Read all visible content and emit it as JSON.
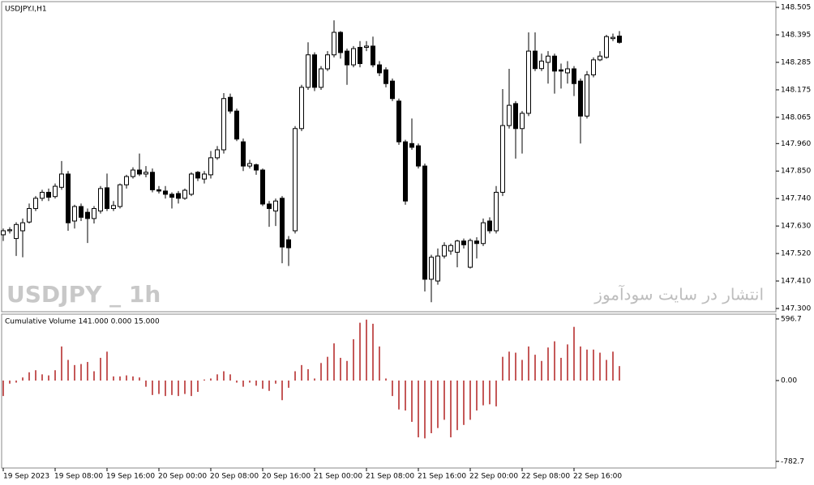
{
  "chart_data": [
    {
      "type": "candlestick",
      "title": "USDJPY.I,H1",
      "watermark": "USDJPY _ 1h",
      "annotation": "انتشار در سایت سودآموز",
      "x": [
        0,
        1,
        2,
        3,
        4,
        5,
        6,
        7,
        8,
        9,
        10,
        11,
        12,
        13,
        14,
        15,
        16,
        17,
        18,
        19,
        20,
        21,
        22,
        23,
        24,
        25,
        26,
        27,
        28,
        29,
        30,
        31,
        32,
        33,
        34,
        35,
        36,
        37,
        38,
        39,
        40,
        41,
        42,
        43,
        44,
        45,
        46,
        47,
        48,
        49,
        50,
        51,
        52,
        53,
        54,
        55,
        56,
        57,
        58,
        59,
        60,
        61,
        62,
        63,
        64,
        65,
        66,
        67,
        68,
        69,
        70,
        71,
        72,
        73,
        74,
        75,
        76,
        77,
        78,
        79,
        80,
        81,
        82,
        83,
        84,
        85,
        86,
        87,
        88,
        89,
        90,
        91,
        92,
        93,
        94,
        95
      ],
      "open": [
        147.595,
        147.611,
        147.58,
        147.611,
        147.646,
        147.7,
        147.741,
        147.765,
        147.748,
        147.785,
        147.838,
        147.65,
        147.708,
        147.685,
        147.66,
        147.69,
        147.783,
        147.7,
        147.708,
        147.795,
        147.828,
        147.854,
        147.838,
        147.845,
        147.775,
        147.77,
        147.757,
        147.76,
        147.741,
        147.757,
        147.845,
        147.818,
        147.835,
        147.903,
        147.935,
        148.145,
        148.09,
        147.967,
        147.87,
        147.875,
        147.854,
        147.718,
        147.69,
        147.741,
        147.575,
        147.611,
        148.02,
        148.185,
        148.315,
        148.185,
        148.259,
        148.315,
        148.405,
        148.33,
        148.275,
        148.345,
        148.345,
        148.35,
        148.275,
        148.255,
        148.21,
        148.13,
        147.967,
        147.96,
        147.951,
        147.87,
        147.417,
        147.41,
        147.51,
        147.53,
        147.525,
        147.57,
        147.465,
        147.57,
        147.56,
        147.65,
        147.611,
        147.765,
        148.032,
        148.12,
        148.02,
        148.081,
        148.33,
        148.26,
        148.285,
        148.31,
        148.255,
        148.243,
        148.259,
        148.21,
        148.07,
        148.235,
        148.295,
        148.305,
        148.38,
        148.39
      ],
      "high": [
        147.62,
        147.625,
        147.645,
        147.66,
        147.72,
        147.75,
        147.775,
        147.78,
        147.8,
        147.89,
        147.85,
        147.715,
        147.72,
        147.7,
        147.71,
        147.79,
        147.84,
        147.73,
        147.8,
        147.835,
        147.865,
        147.92,
        147.87,
        147.86,
        147.79,
        147.79,
        147.765,
        147.77,
        147.78,
        147.845,
        147.85,
        147.85,
        147.93,
        147.95,
        148.162,
        148.16,
        148.1,
        147.98,
        147.895,
        147.88,
        147.86,
        147.73,
        147.74,
        147.75,
        147.59,
        148.03,
        148.195,
        148.365,
        148.325,
        148.27,
        148.33,
        148.453,
        148.41,
        148.34,
        148.35,
        148.37,
        148.37,
        148.388,
        148.29,
        148.265,
        148.22,
        148.14,
        147.975,
        148.06,
        147.96,
        147.88,
        147.515,
        147.54,
        147.565,
        147.56,
        147.575,
        147.58,
        147.58,
        147.585,
        147.66,
        147.665,
        147.79,
        148.178,
        148.259,
        148.13,
        148.09,
        148.405,
        148.405,
        148.32,
        148.33,
        148.32,
        148.28,
        148.29,
        148.27,
        148.22,
        148.25,
        148.305,
        148.33,
        148.395,
        148.4,
        148.41
      ],
      "low": [
        147.57,
        147.6,
        147.51,
        147.505,
        147.64,
        147.69,
        147.73,
        147.73,
        147.74,
        147.775,
        147.611,
        147.62,
        147.65,
        147.562,
        147.64,
        147.68,
        147.69,
        147.69,
        147.7,
        147.78,
        147.82,
        147.83,
        147.825,
        147.765,
        147.76,
        147.74,
        147.7,
        147.72,
        147.735,
        147.75,
        147.81,
        147.8,
        147.82,
        147.895,
        147.92,
        148.08,
        147.97,
        147.85,
        147.86,
        147.835,
        147.71,
        147.627,
        147.63,
        147.481,
        147.47,
        147.6,
        148.01,
        148.175,
        148.17,
        148.175,
        148.25,
        148.305,
        148.3,
        148.195,
        148.265,
        148.265,
        148.33,
        148.265,
        148.23,
        148.185,
        148.13,
        147.955,
        147.715,
        147.935,
        147.86,
        147.368,
        147.325,
        147.395,
        147.5,
        147.515,
        147.465,
        147.54,
        147.46,
        147.5,
        147.55,
        147.6,
        147.6,
        147.75,
        148.02,
        147.9,
        147.92,
        148.07,
        148.25,
        148.25,
        148.2,
        148.16,
        148.18,
        148.2,
        148.15,
        147.96,
        148.06,
        148.225,
        148.29,
        148.3,
        148.37,
        148.36
      ],
      "close": [
        147.611,
        147.615,
        147.636,
        147.643,
        147.7,
        147.741,
        147.765,
        147.745,
        147.789,
        147.838,
        147.643,
        147.708,
        147.665,
        147.66,
        147.7,
        147.78,
        147.7,
        147.712,
        147.795,
        147.828,
        147.854,
        147.838,
        147.845,
        147.775,
        147.77,
        147.757,
        147.745,
        147.741,
        147.773,
        147.838,
        147.822,
        147.838,
        147.903,
        147.935,
        148.14,
        148.09,
        147.978,
        147.87,
        147.88,
        147.854,
        147.718,
        147.7,
        147.73,
        147.546,
        147.543,
        148.02,
        148.185,
        148.315,
        148.185,
        148.259,
        148.315,
        148.405,
        148.324,
        148.275,
        148.34,
        148.28,
        148.35,
        148.275,
        148.243,
        148.2,
        148.14,
        147.967,
        147.73,
        147.945,
        147.87,
        147.417,
        147.505,
        147.51,
        147.552,
        147.552,
        147.57,
        147.555,
        147.572,
        147.56,
        147.643,
        147.611,
        147.765,
        148.032,
        148.113,
        148.02,
        148.081,
        148.33,
        148.26,
        148.29,
        148.31,
        148.25,
        148.25,
        148.259,
        148.2,
        148.07,
        148.235,
        148.295,
        148.31,
        148.388,
        148.385,
        148.365
      ],
      "up_color": "#ffffff",
      "down_color": "#000000",
      "xlim": [
        -0.25,
        119.125
      ],
      "ylim": [
        147.287,
        148.528
      ],
      "yticks": [
        148.505,
        148.395,
        148.285,
        148.175,
        148.065,
        {
          "value": 147.96,
          "label": "147.960"
        },
        {
          "value": 147.85,
          "label": "147.850"
        },
        {
          "value": 147.74,
          "label": "147.740"
        },
        {
          "value": 147.63,
          "label": "147.630"
        },
        {
          "value": 147.52,
          "label": "147.520"
        },
        {
          "value": 147.41,
          "label": "147.410"
        },
        {
          "value": 147.3,
          "label": "147.300"
        }
      ]
    },
    {
      "type": "bar",
      "title": "Cumulative Volume 141.000 0.000 15.000",
      "color": "#b22222",
      "x": [
        0,
        1,
        2,
        3,
        4,
        5,
        6,
        7,
        8,
        9,
        10,
        11,
        12,
        13,
        14,
        15,
        16,
        17,
        18,
        19,
        20,
        21,
        22,
        23,
        24,
        25,
        26,
        27,
        28,
        29,
        30,
        31,
        32,
        33,
        34,
        35,
        36,
        37,
        38,
        39,
        40,
        41,
        42,
        43,
        44,
        45,
        46,
        47,
        48,
        49,
        50,
        51,
        52,
        53,
        54,
        55,
        56,
        57,
        58,
        59,
        60,
        61,
        62,
        63,
        64,
        65,
        66,
        67,
        68,
        69,
        70,
        71,
        72,
        73,
        74,
        75,
        76,
        77,
        78,
        79,
        80,
        81,
        82,
        83,
        84,
        85,
        86,
        87,
        88,
        89,
        90,
        91,
        92,
        93,
        94,
        95
      ],
      "values": [
        -150,
        -30,
        -20,
        30,
        80,
        100,
        60,
        50,
        100,
        330,
        200,
        150,
        160,
        180,
        90,
        220,
        280,
        40,
        40,
        50,
        40,
        30,
        -60,
        -140,
        -130,
        -150,
        -140,
        -150,
        -130,
        -150,
        -110,
        10,
        20,
        60,
        90,
        60,
        -20,
        -60,
        -20,
        -50,
        -80,
        -100,
        -30,
        -190,
        -70,
        90,
        150,
        110,
        20,
        170,
        230,
        360,
        220,
        190,
        400,
        560,
        590,
        550,
        330,
        20,
        -150,
        -280,
        -290,
        -400,
        -550,
        -560,
        -510,
        -460,
        -380,
        -550,
        -480,
        -430,
        -380,
        -290,
        -240,
        -230,
        -250,
        230,
        280,
        270,
        200,
        330,
        250,
        190,
        320,
        380,
        220,
        350,
        520,
        330,
        300,
        300,
        270,
        200,
        280,
        140
      ],
      "xlim": [
        -0.25,
        119.125
      ],
      "xticks": [
        {
          "value": 0,
          "label": "19 Sep 2023"
        },
        {
          "value": 8,
          "label": "19 Sep 08:00"
        },
        {
          "value": 16,
          "label": "19 Sep 16:00"
        },
        {
          "value": 24,
          "label": "20 Sep 00:00"
        },
        {
          "value": 32,
          "label": "20 Sep 08:00"
        },
        {
          "value": 40,
          "label": "20 Sep 16:00"
        },
        {
          "value": 48,
          "label": "21 Sep 00:00"
        },
        {
          "value": 56,
          "label": "21 Sep 08:00"
        },
        {
          "value": 64,
          "label": "21 Sep 16:00"
        },
        {
          "value": 72,
          "label": "22 Sep 00:00"
        },
        {
          "value": 80,
          "label": "22 Sep 08:00"
        },
        {
          "value": 88,
          "label": "22 Sep 16:00"
        }
      ],
      "ylim": [
        -847,
        643
      ],
      "yticks": [
        596.7,
        {
          "value": 0,
          "label": "0.00"
        },
        -782.7
      ]
    }
  ]
}
